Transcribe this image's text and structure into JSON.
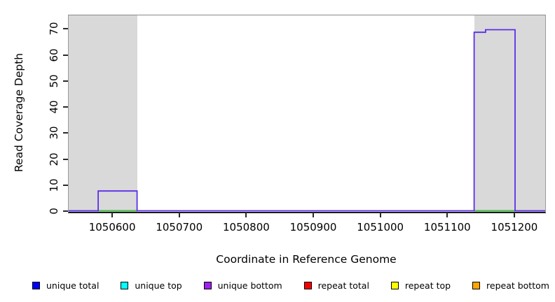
{
  "chart_data": {
    "type": "line",
    "subtype": "step-coverage",
    "title": "",
    "xlabel": "Coordinate in Reference Genome",
    "ylabel": "Read Coverage Depth",
    "xlim": [
      1050534,
      1051245
    ],
    "ylim": [
      0,
      75.5
    ],
    "x_ticks": [
      1050600,
      1050700,
      1050800,
      1050900,
      1051000,
      1051100,
      1051200
    ],
    "y_ticks": [
      0,
      10,
      20,
      30,
      40,
      50,
      60,
      70
    ],
    "grid": false,
    "frame_color": "#8a8a8a",
    "background_color": "#ffffff",
    "shaded_regions": {
      "color": "#d9d9d9",
      "ranges": [
        [
          1050534,
          1050636
        ],
        [
          1051139,
          1051245
        ]
      ]
    },
    "series": [
      {
        "name": "unique bottom coverage (visible step line)",
        "line_color": "#5b2ee8",
        "points": [
          [
            1050534,
            0
          ],
          [
            1050578,
            0
          ],
          [
            1050578,
            8
          ],
          [
            1050636,
            8
          ],
          [
            1050636,
            0
          ],
          [
            1051139,
            0
          ],
          [
            1051139,
            69
          ],
          [
            1051156,
            69
          ],
          [
            1051156,
            70
          ],
          [
            1051200,
            70
          ],
          [
            1051200,
            0
          ],
          [
            1051245,
            0
          ]
        ]
      },
      {
        "name": "baseline segments (green, under elevated step regions)",
        "line_color": "#44bb44",
        "segments": [
          [
            1050578,
            1050636
          ],
          [
            1051139,
            1051200
          ]
        ]
      }
    ],
    "legend_position": "bottom",
    "legend": [
      {
        "label": "unique total",
        "color": "#0000ff"
      },
      {
        "label": "unique top",
        "color": "#00ffff"
      },
      {
        "label": "unique bottom",
        "color": "#a020f0"
      },
      {
        "label": "repeat total",
        "color": "#f40000"
      },
      {
        "label": "repeat top",
        "color": "#ffff00"
      },
      {
        "label": "repeat bottom",
        "color": "#ffa500"
      }
    ]
  }
}
